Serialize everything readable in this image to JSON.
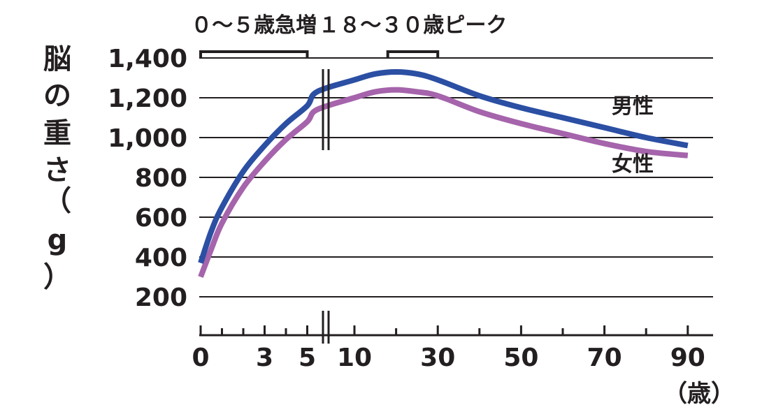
{
  "chart_data": {
    "type": "line",
    "ylabel": "脳の重さ（g）",
    "x_unit_label": "（歳）",
    "ylim": [
      200,
      1400
    ],
    "y_ticks": [
      "200",
      "400",
      "600",
      "800",
      "1,000",
      "1,200",
      "1,400"
    ],
    "y_tick_values": [
      200,
      400,
      600,
      800,
      1000,
      1200,
      1400
    ],
    "x_ticks": [
      "0",
      "3",
      "5",
      "10",
      "30",
      "50",
      "70",
      "90"
    ],
    "x_tick_values": [
      0,
      3,
      5,
      10,
      30,
      50,
      70,
      90
    ],
    "x_axis_break": "between 5 and 10 (scale changes: 0–5 expanded, 10–90 compressed)",
    "grid": "horizontal",
    "annotations": [
      {
        "label": "０～５歳急増",
        "range": [
          0,
          5
        ]
      },
      {
        "label": "１８～３０歳ピーク",
        "range": [
          18,
          30
        ]
      }
    ],
    "series": [
      {
        "name": "男性",
        "color": "#2b4fa3",
        "points": [
          [
            0,
            370
          ],
          [
            0.5,
            530
          ],
          [
            1,
            650
          ],
          [
            2,
            830
          ],
          [
            3,
            960
          ],
          [
            4,
            1070
          ],
          [
            5,
            1160
          ],
          [
            6,
            1230
          ],
          [
            10,
            1290
          ],
          [
            15,
            1320
          ],
          [
            20,
            1330
          ],
          [
            25,
            1320
          ],
          [
            30,
            1290
          ],
          [
            40,
            1210
          ],
          [
            50,
            1150
          ],
          [
            60,
            1100
          ],
          [
            70,
            1050
          ],
          [
            80,
            1000
          ],
          [
            90,
            960
          ]
        ]
      },
      {
        "name": "女性",
        "color": "#a564ab",
        "points": [
          [
            0,
            300
          ],
          [
            0.5,
            440
          ],
          [
            1,
            570
          ],
          [
            2,
            750
          ],
          [
            3,
            880
          ],
          [
            4,
            990
          ],
          [
            5,
            1080
          ],
          [
            6,
            1140
          ],
          [
            10,
            1200
          ],
          [
            15,
            1230
          ],
          [
            20,
            1240
          ],
          [
            25,
            1230
          ],
          [
            30,
            1210
          ],
          [
            40,
            1130
          ],
          [
            50,
            1070
          ],
          [
            60,
            1020
          ],
          [
            70,
            970
          ],
          [
            80,
            930
          ],
          [
            90,
            910
          ]
        ]
      }
    ]
  }
}
